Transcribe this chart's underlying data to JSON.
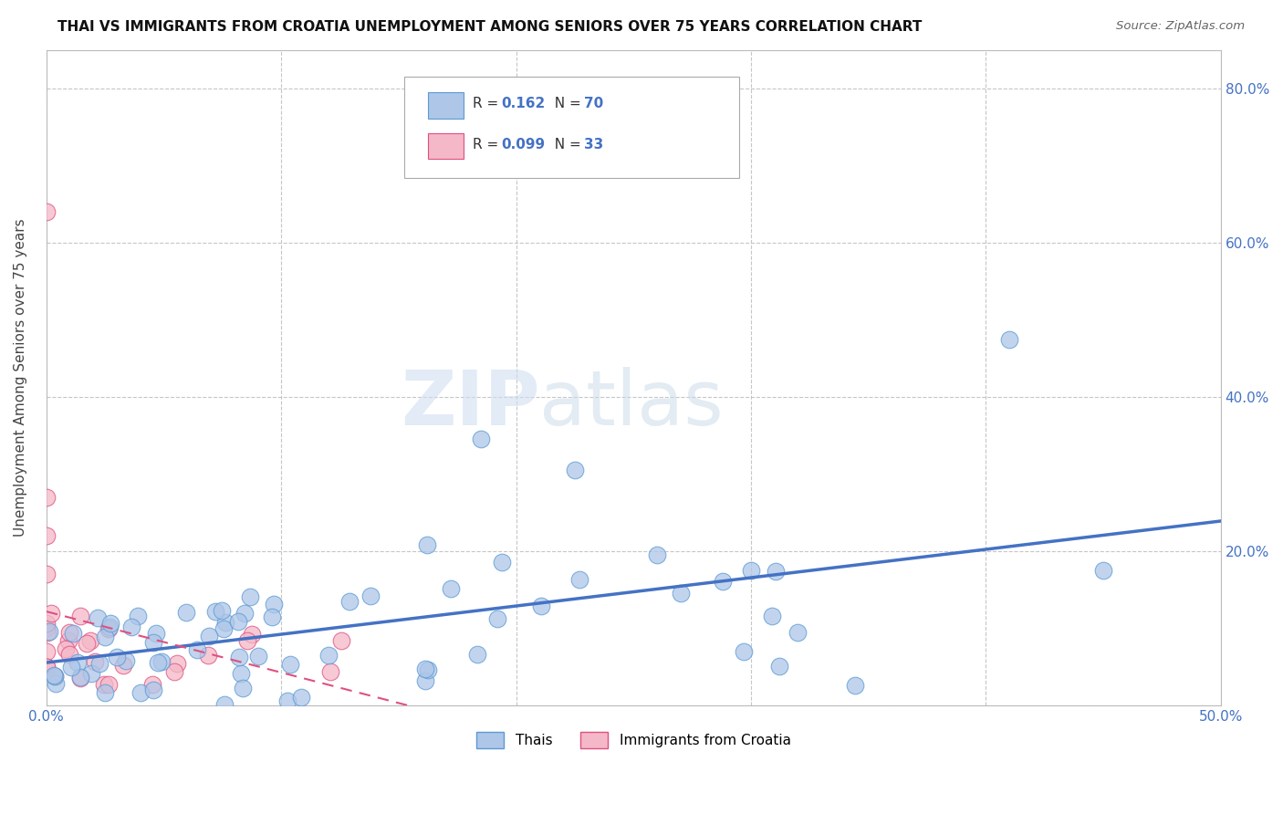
{
  "title": "THAI VS IMMIGRANTS FROM CROATIA UNEMPLOYMENT AMONG SENIORS OVER 75 YEARS CORRELATION CHART",
  "source": "Source: ZipAtlas.com",
  "ylabel": "Unemployment Among Seniors over 75 years",
  "xlim": [
    0.0,
    0.5
  ],
  "ylim": [
    0.0,
    0.85
  ],
  "xticks": [
    0.0,
    0.1,
    0.2,
    0.3,
    0.4,
    0.5
  ],
  "yticks": [
    0.0,
    0.2,
    0.4,
    0.6,
    0.8
  ],
  "xticklabels": [
    "0.0%",
    "",
    "",
    "",
    "",
    "50.0%"
  ],
  "yticklabels_right": [
    "",
    "20.0%",
    "40.0%",
    "60.0%",
    "80.0%"
  ],
  "legend_entries": [
    {
      "label": "Thais",
      "color": "#aec6e8",
      "edge_color": "#5b9bd5",
      "R": "0.162",
      "N": "70"
    },
    {
      "label": "Immigrants from Croatia",
      "color": "#f4b8c8",
      "edge_color": "#e05080",
      "R": "0.099",
      "N": "33"
    }
  ],
  "thai_line_color": "#4472c4",
  "croatia_line_color": "#e05080",
  "watermark_zip": "ZIP",
  "watermark_atlas": "atlas",
  "background_color": "#ffffff",
  "grid_color": "#c0c0c0",
  "tick_color": "#4472c4",
  "axis_color": "#bbbbbb"
}
